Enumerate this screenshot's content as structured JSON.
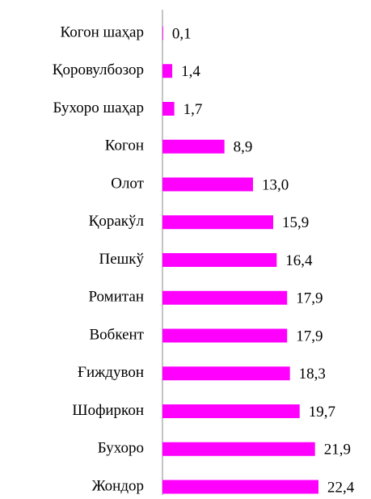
{
  "chart_data": {
    "type": "bar",
    "orientation": "horizontal",
    "categories": [
      "Когон шаҳар",
      "Қоровулбозор",
      "Бухоро шаҳар",
      "Когон",
      "Олот",
      "Қоракўл",
      "Пешкў",
      "Ромитан",
      "Вобкент",
      "Ғиждувон",
      "Шофиркон",
      "Бухоро",
      "Жондор"
    ],
    "values": [
      0.1,
      1.4,
      1.7,
      8.9,
      13.0,
      15.9,
      16.4,
      17.9,
      17.9,
      18.3,
      19.7,
      21.9,
      22.4
    ],
    "value_labels": [
      "0,1",
      "1,4",
      "1,7",
      "8,9",
      "13,0",
      "15,9",
      "16,4",
      "17,9",
      "17,9",
      "18,3",
      "19,7",
      "21,9",
      "22,4"
    ],
    "color": "#ff00ff"
  }
}
